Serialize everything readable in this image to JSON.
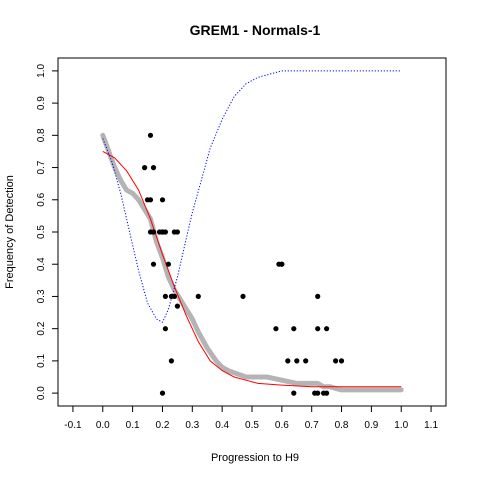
{
  "chart_data": {
    "type": "scatter",
    "title": "GREM1 - Normals-1",
    "xlabel": "Progression to H9",
    "ylabel": "Frequency of Detection",
    "xlim": [
      -0.15,
      1.15
    ],
    "ylim": [
      -0.04,
      1.04
    ],
    "xticks": [
      "-0.1",
      "0.0",
      "0.1",
      "0.2",
      "0.3",
      "0.4",
      "0.5",
      "0.6",
      "0.7",
      "0.8",
      "0.9",
      "1.0",
      "1.1"
    ],
    "xtick_values": [
      -0.1,
      0.0,
      0.1,
      0.2,
      0.3,
      0.4,
      0.5,
      0.6,
      0.7,
      0.8,
      0.9,
      1.0,
      1.1
    ],
    "yticks": [
      "0.0",
      "0.1",
      "0.2",
      "0.3",
      "0.4",
      "0.5",
      "0.6",
      "0.7",
      "0.8",
      "0.9",
      "1.0"
    ],
    "ytick_values": [
      0.0,
      0.1,
      0.2,
      0.3,
      0.4,
      0.5,
      0.6,
      0.7,
      0.8,
      0.9,
      1.0
    ],
    "grid": false,
    "legend": "none",
    "colors": {
      "points": "#000000",
      "smoothed": "#b4b4b4",
      "fit": "#ff0000",
      "dotted": "#0000ff"
    },
    "series": [
      {
        "kind": "points",
        "x": [
          0.16,
          0.14,
          0.17,
          0.15,
          0.16,
          0.2,
          0.2,
          0.21,
          0.16,
          0.17,
          0.19,
          0.2,
          0.24,
          0.25,
          0.17,
          0.22,
          0.21,
          0.23,
          0.24,
          0.25,
          0.32,
          0.47,
          0.6,
          0.6,
          0.59,
          0.72,
          0.21,
          0.58,
          0.64,
          0.72,
          0.75,
          0.23,
          0.62,
          0.65,
          0.68,
          0.78,
          0.8,
          0.2,
          0.64,
          0.72,
          0.74,
          0.75,
          0.71
        ],
        "y": [
          0.8,
          0.7,
          0.7,
          0.6,
          0.6,
          0.6,
          0.5,
          0.5,
          0.5,
          0.5,
          0.5,
          0.5,
          0.5,
          0.5,
          0.4,
          0.4,
          0.3,
          0.3,
          0.3,
          0.27,
          0.3,
          0.3,
          0.4,
          0.4,
          0.4,
          0.3,
          0.2,
          0.2,
          0.2,
          0.2,
          0.2,
          0.1,
          0.1,
          0.1,
          0.1,
          0.1,
          0.1,
          0.0,
          0.0,
          0.0,
          0.0,
          0.0,
          0.0
        ]
      },
      {
        "kind": "smoothed",
        "x": [
          0.0,
          0.02,
          0.04,
          0.06,
          0.08,
          0.1,
          0.12,
          0.14,
          0.16,
          0.18,
          0.2,
          0.22,
          0.24,
          0.26,
          0.28,
          0.3,
          0.32,
          0.35,
          0.38,
          0.4,
          0.42,
          0.45,
          0.48,
          0.5,
          0.55,
          0.6,
          0.65,
          0.7,
          0.72,
          0.74,
          0.76,
          0.8,
          0.85,
          0.9,
          0.95,
          1.0
        ],
        "y": [
          0.8,
          0.75,
          0.7,
          0.66,
          0.63,
          0.62,
          0.6,
          0.57,
          0.54,
          0.47,
          0.42,
          0.36,
          0.32,
          0.29,
          0.26,
          0.23,
          0.19,
          0.14,
          0.1,
          0.08,
          0.07,
          0.06,
          0.05,
          0.05,
          0.05,
          0.04,
          0.03,
          0.03,
          0.03,
          0.02,
          0.02,
          0.01,
          0.01,
          0.01,
          0.01,
          0.01
        ]
      },
      {
        "kind": "fit",
        "x": [
          0.0,
          0.04,
          0.08,
          0.12,
          0.16,
          0.2,
          0.24,
          0.28,
          0.32,
          0.36,
          0.4,
          0.44,
          0.48,
          0.52,
          0.6,
          0.7,
          0.8,
          0.9,
          1.0
        ],
        "y": [
          0.75,
          0.73,
          0.69,
          0.63,
          0.54,
          0.43,
          0.33,
          0.24,
          0.16,
          0.1,
          0.07,
          0.05,
          0.04,
          0.03,
          0.025,
          0.02,
          0.02,
          0.02,
          0.02
        ]
      },
      {
        "kind": "dotted",
        "x": [
          0.0,
          0.03,
          0.06,
          0.09,
          0.12,
          0.15,
          0.18,
          0.2,
          0.22,
          0.25,
          0.28,
          0.3,
          0.33,
          0.36,
          0.4,
          0.44,
          0.48,
          0.52,
          0.56,
          0.6,
          0.65,
          0.7,
          0.8,
          0.9,
          1.0
        ],
        "y": [
          0.79,
          0.72,
          0.62,
          0.5,
          0.38,
          0.28,
          0.23,
          0.22,
          0.26,
          0.36,
          0.48,
          0.56,
          0.66,
          0.76,
          0.85,
          0.92,
          0.96,
          0.98,
          0.99,
          1.0,
          1.0,
          1.0,
          1.0,
          1.0,
          1.0
        ]
      }
    ]
  }
}
